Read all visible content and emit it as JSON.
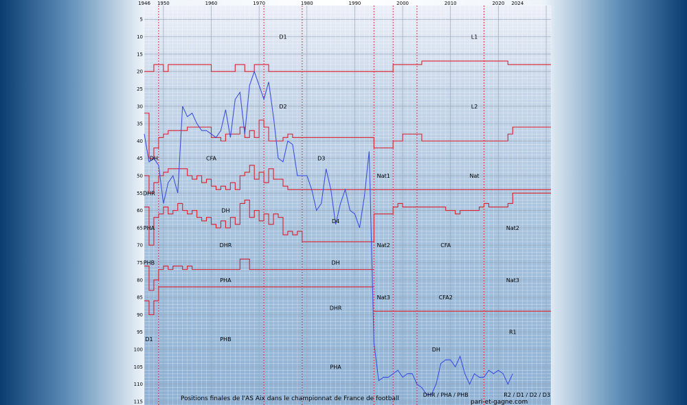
{
  "chart_data": {
    "type": "line",
    "title": "Positions finales de l'AS Aix dans le championnat de France de football",
    "credit": "pari-et-gagne.com",
    "xlim": [
      1946,
      2031
    ],
    "ylim": [
      116,
      1
    ],
    "x_ticks": [
      1946,
      1950,
      1960,
      1970,
      1980,
      1990,
      2000,
      2010,
      2020,
      2024
    ],
    "y_ticks": [
      5,
      10,
      15,
      20,
      25,
      30,
      35,
      40,
      45,
      50,
      55,
      60,
      65,
      70,
      75,
      80,
      85,
      90,
      95,
      100,
      105,
      110,
      115
    ],
    "grid": true,
    "eras": [
      1949,
      1971,
      1979,
      1994,
      1998,
      2003,
      2017
    ],
    "boundaries": [
      [
        [
          1946,
          20
        ],
        [
          1947,
          20
        ],
        [
          1948,
          18
        ],
        [
          1949,
          18
        ],
        [
          1950,
          20
        ],
        [
          1951,
          18
        ],
        [
          1959,
          18
        ],
        [
          1960,
          20
        ],
        [
          1964,
          20
        ],
        [
          1965,
          18
        ],
        [
          1966,
          18
        ],
        [
          1967,
          20
        ],
        [
          1968,
          20
        ],
        [
          1969,
          18
        ],
        [
          1971,
          18
        ],
        [
          1972,
          20
        ],
        [
          1994,
          20
        ],
        [
          1998,
          18
        ],
        [
          2003,
          18
        ],
        [
          2004,
          17
        ],
        [
          2021,
          17
        ],
        [
          2022,
          18
        ],
        [
          2031,
          18
        ]
      ],
      [
        [
          1946,
          32
        ],
        [
          1947,
          45
        ],
        [
          1948,
          42
        ],
        [
          1949,
          39
        ],
        [
          1950,
          38
        ],
        [
          1951,
          37
        ],
        [
          1954,
          37
        ],
        [
          1955,
          36
        ],
        [
          1959,
          36
        ],
        [
          1960,
          39
        ],
        [
          1962,
          40
        ],
        [
          1963,
          38
        ],
        [
          1965,
          38
        ],
        [
          1966,
          36
        ],
        [
          1967,
          39
        ],
        [
          1968,
          37
        ],
        [
          1969,
          39
        ],
        [
          1970,
          34
        ],
        [
          1971,
          36
        ],
        [
          1972,
          40
        ],
        [
          1975,
          39
        ],
        [
          1976,
          38
        ],
        [
          1977,
          39
        ],
        [
          1994,
          42
        ],
        [
          1997,
          42
        ],
        [
          1998,
          40
        ],
        [
          2000,
          38
        ],
        [
          2003,
          38
        ],
        [
          2004,
          40
        ],
        [
          2021,
          40
        ],
        [
          2022,
          38
        ],
        [
          2023,
          36
        ],
        [
          2031,
          36
        ]
      ],
      [
        [
          1946,
          50
        ],
        [
          1947,
          55
        ],
        [
          1948,
          52
        ],
        [
          1949,
          50
        ],
        [
          1950,
          49
        ],
        [
          1951,
          48
        ],
        [
          1954,
          48
        ],
        [
          1955,
          50
        ],
        [
          1956,
          51
        ],
        [
          1957,
          50
        ],
        [
          1958,
          52
        ],
        [
          1959,
          51
        ],
        [
          1960,
          53
        ],
        [
          1961,
          54
        ],
        [
          1962,
          53
        ],
        [
          1963,
          54
        ],
        [
          1964,
          52
        ],
        [
          1965,
          54
        ],
        [
          1966,
          50
        ],
        [
          1967,
          49
        ],
        [
          1968,
          47
        ],
        [
          1969,
          51
        ],
        [
          1970,
          49
        ],
        [
          1971,
          52
        ],
        [
          1972,
          48
        ],
        [
          1973,
          51
        ],
        [
          1974,
          51
        ],
        [
          1975,
          53
        ],
        [
          1976,
          54
        ],
        [
          1994,
          54
        ],
        [
          2031,
          54
        ]
      ],
      [
        [
          1946,
          59
        ],
        [
          1947,
          70
        ],
        [
          1948,
          62
        ],
        [
          1949,
          61
        ],
        [
          1950,
          59
        ],
        [
          1951,
          61
        ],
        [
          1952,
          60
        ],
        [
          1953,
          58
        ],
        [
          1954,
          60
        ],
        [
          1955,
          61
        ],
        [
          1956,
          60
        ],
        [
          1957,
          62
        ],
        [
          1958,
          63
        ],
        [
          1959,
          62
        ],
        [
          1960,
          64
        ],
        [
          1961,
          65
        ],
        [
          1962,
          63
        ],
        [
          1963,
          65
        ],
        [
          1964,
          62
        ],
        [
          1965,
          64
        ],
        [
          1966,
          58
        ],
        [
          1967,
          57
        ],
        [
          1968,
          62
        ],
        [
          1969,
          60
        ],
        [
          1970,
          63
        ],
        [
          1971,
          61
        ],
        [
          1972,
          64
        ],
        [
          1973,
          61
        ],
        [
          1974,
          62
        ],
        [
          1975,
          67
        ],
        [
          1976,
          66
        ],
        [
          1977,
          67
        ],
        [
          1978,
          66
        ],
        [
          1979,
          69
        ],
        [
          1994,
          61
        ],
        [
          1997,
          61
        ],
        [
          1998,
          59
        ],
        [
          1999,
          58
        ],
        [
          2000,
          59
        ],
        [
          2008,
          59
        ],
        [
          2009,
          60
        ],
        [
          2010,
          60
        ],
        [
          2011,
          61
        ],
        [
          2012,
          60
        ],
        [
          2013,
          60
        ],
        [
          2014,
          60
        ],
        [
          2015,
          60
        ],
        [
          2016,
          59
        ],
        [
          2017,
          58
        ],
        [
          2018,
          59
        ],
        [
          2022,
          58
        ],
        [
          2023,
          55
        ],
        [
          2031,
          55
        ]
      ],
      [
        [
          1946,
          76
        ],
        [
          1947,
          83
        ],
        [
          1948,
          80
        ],
        [
          1949,
          77
        ],
        [
          1950,
          76
        ],
        [
          1951,
          77
        ],
        [
          1952,
          76
        ],
        [
          1953,
          76
        ],
        [
          1954,
          77
        ],
        [
          1955,
          76
        ],
        [
          1956,
          77
        ],
        [
          1957,
          77
        ],
        [
          1958,
          77
        ],
        [
          1959,
          77
        ],
        [
          1960,
          77
        ],
        [
          1961,
          77
        ],
        [
          1962,
          77
        ],
        [
          1963,
          77
        ],
        [
          1964,
          77
        ],
        [
          1965,
          77
        ],
        [
          1966,
          74
        ],
        [
          1967,
          74
        ],
        [
          1968,
          77
        ],
        [
          1969,
          77
        ],
        [
          1970,
          77
        ],
        [
          1971,
          77
        ],
        [
          1972,
          77
        ],
        [
          1973,
          77
        ],
        [
          1974,
          77
        ],
        [
          1975,
          77
        ],
        [
          1976,
          77
        ],
        [
          1977,
          77
        ],
        [
          1978,
          77
        ],
        [
          1979,
          77
        ],
        [
          1980,
          77
        ],
        [
          1994,
          77
        ]
      ],
      [
        [
          1946,
          86
        ],
        [
          1947,
          90
        ],
        [
          1948,
          86
        ],
        [
          1949,
          82
        ],
        [
          1994,
          82
        ]
      ],
      [
        [
          1994,
          89
        ],
        [
          1998,
          89
        ],
        [
          2031,
          89
        ]
      ]
    ],
    "series": [
      {
        "color": "#3c50e0",
        "points": [
          [
            1946,
            38
          ],
          [
            1947,
            46
          ],
          [
            1948,
            45
          ],
          [
            1949,
            47
          ],
          [
            1950,
            58
          ],
          [
            1951,
            52
          ],
          [
            1952,
            50
          ],
          [
            1953,
            55
          ],
          [
            1954,
            30
          ],
          [
            1955,
            33
          ],
          [
            1956,
            32
          ],
          [
            1957,
            35
          ],
          [
            1958,
            37
          ],
          [
            1959,
            37
          ],
          [
            1960,
            38
          ],
          [
            1961,
            39
          ],
          [
            1962,
            37
          ],
          [
            1963,
            31
          ],
          [
            1964,
            39
          ],
          [
            1965,
            28
          ],
          [
            1966,
            26
          ],
          [
            1967,
            38
          ],
          [
            1968,
            24
          ],
          [
            1969,
            20
          ],
          [
            1970,
            24
          ],
          [
            1971,
            28
          ],
          [
            1972,
            23
          ],
          [
            1973,
            33
          ],
          [
            1974,
            45
          ],
          [
            1975,
            46
          ],
          [
            1976,
            40
          ],
          [
            1977,
            41
          ],
          [
            1978,
            50
          ],
          [
            1979,
            50
          ],
          [
            1980,
            50
          ],
          [
            1981,
            54
          ],
          [
            1982,
            60
          ],
          [
            1983,
            58
          ],
          [
            1984,
            48
          ],
          [
            1985,
            54
          ],
          [
            1986,
            64
          ],
          [
            1987,
            58
          ],
          [
            1988,
            54
          ],
          [
            1989,
            60
          ],
          [
            1990,
            61
          ],
          [
            1991,
            65
          ],
          [
            1992,
            56
          ],
          [
            1993,
            43
          ],
          [
            1994,
            98
          ],
          [
            1995,
            109
          ],
          [
            1996,
            108
          ],
          [
            1997,
            108
          ],
          [
            1998,
            107
          ],
          [
            1999,
            106
          ],
          [
            2000,
            108
          ],
          [
            2001,
            107
          ],
          [
            2002,
            107
          ],
          [
            2003,
            110
          ],
          [
            2004,
            111
          ],
          [
            2005,
            113
          ],
          [
            2006,
            113
          ],
          [
            2007,
            110
          ],
          [
            2008,
            104
          ],
          [
            2009,
            103
          ],
          [
            2010,
            103
          ],
          [
            2011,
            105
          ],
          [
            2012,
            102
          ],
          [
            2013,
            107
          ],
          [
            2014,
            110
          ],
          [
            2015,
            107
          ],
          [
            2016,
            108
          ],
          [
            2017,
            108
          ],
          [
            2018,
            106
          ],
          [
            2019,
            107
          ],
          [
            2020,
            106
          ],
          [
            2021,
            107
          ],
          [
            2022,
            110
          ],
          [
            2023,
            107
          ]
        ]
      }
    ],
    "level_labels": [
      {
        "t": "D1",
        "x": 1975,
        "y": 10
      },
      {
        "t": "L1",
        "x": 2015,
        "y": 10
      },
      {
        "t": "D2",
        "x": 1975,
        "y": 30
      },
      {
        "t": "L2",
        "x": 2015,
        "y": 30
      },
      {
        "t": "DH",
        "x": 1948,
        "y": 45
      },
      {
        "t": "CFA",
        "x": 1960,
        "y": 45
      },
      {
        "t": "D3",
        "x": 1983,
        "y": 45
      },
      {
        "t": "Nat1",
        "x": 1996,
        "y": 50
      },
      {
        "t": "Nat",
        "x": 2015,
        "y": 50
      },
      {
        "t": "DHR",
        "x": 1947,
        "y": 55
      },
      {
        "t": "DH",
        "x": 1963,
        "y": 60
      },
      {
        "t": "D4",
        "x": 1986,
        "y": 63
      },
      {
        "t": "PHA",
        "x": 1947,
        "y": 65
      },
      {
        "t": "Nat2",
        "x": 2023,
        "y": 65
      },
      {
        "t": "DHR",
        "x": 1963,
        "y": 70
      },
      {
        "t": "Nat2",
        "x": 1996,
        "y": 70
      },
      {
        "t": "CFA",
        "x": 2009,
        "y": 70
      },
      {
        "t": "PHB",
        "x": 1947,
        "y": 75
      },
      {
        "t": "DH",
        "x": 1986,
        "y": 75
      },
      {
        "t": "PHA",
        "x": 1963,
        "y": 80
      },
      {
        "t": "Nat3",
        "x": 2023,
        "y": 80
      },
      {
        "t": "Nat3",
        "x": 1996,
        "y": 85
      },
      {
        "t": "CFA2",
        "x": 2009,
        "y": 85
      },
      {
        "t": "DHR",
        "x": 1986,
        "y": 88
      },
      {
        "t": "R1",
        "x": 2023,
        "y": 95
      },
      {
        "t": "D1",
        "x": 1947,
        "y": 97
      },
      {
        "t": "PHB",
        "x": 1963,
        "y": 97
      },
      {
        "t": "DH",
        "x": 2007,
        "y": 100
      },
      {
        "t": "PHA",
        "x": 1986,
        "y": 105
      },
      {
        "t": "DHR / PHA / PHB",
        "x": 2009,
        "y": 113
      },
      {
        "t": "R2 / D1 / D2 / D3",
        "x": 2026,
        "y": 113
      }
    ]
  }
}
